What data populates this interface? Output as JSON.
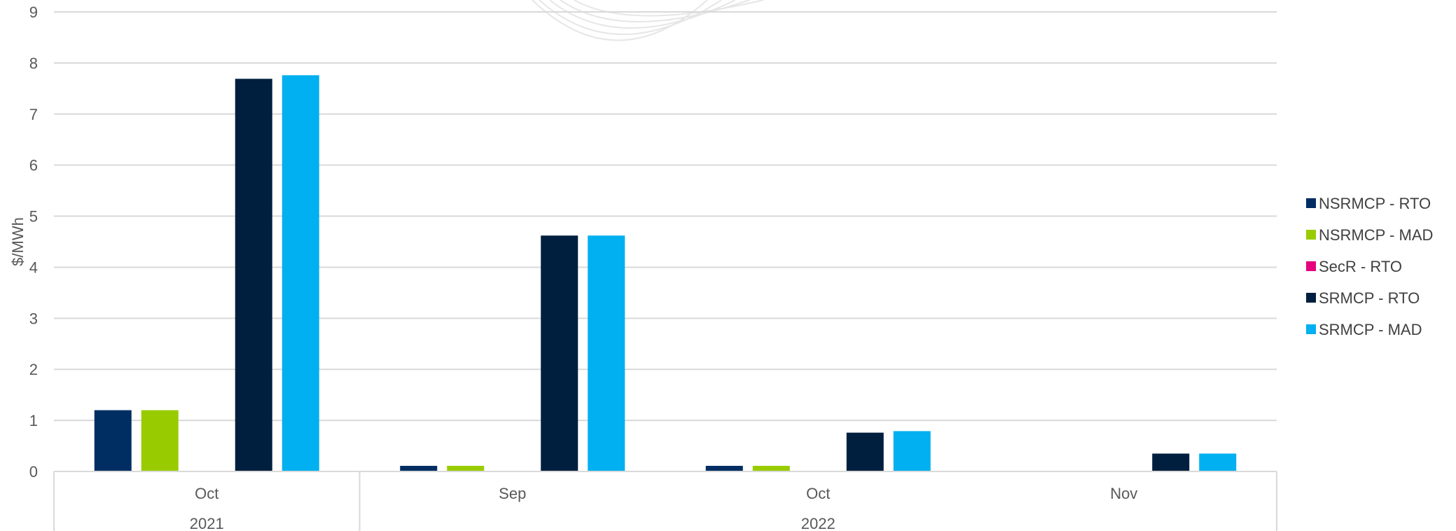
{
  "chart_data": {
    "type": "bar",
    "title": "",
    "xlabel": "",
    "ylabel": "$/MWh",
    "ylim": [
      0,
      9
    ],
    "yticks": [
      "0",
      "1",
      "2",
      "3",
      "4",
      "5",
      "6",
      "7",
      "8",
      "9"
    ],
    "grid": true,
    "legend_position": "right",
    "categories": [
      "Oct",
      "Sep",
      "Oct",
      "Nov"
    ],
    "category_groups": [
      {
        "label": "2021",
        "categories": [
          "Oct"
        ]
      },
      {
        "label": "2022",
        "categories": [
          "Sep",
          "Oct",
          "Nov"
        ]
      }
    ],
    "series": [
      {
        "name": "NSRMCP - RTO",
        "color": "#002E63",
        "values": [
          1.2,
          0.11,
          0.11,
          0.01
        ]
      },
      {
        "name": "NSRMCP - MAD",
        "color": "#99CC00",
        "values": [
          1.2,
          0.11,
          0.11,
          0.01
        ]
      },
      {
        "name": "SecR - RTO",
        "color": "#E5007E",
        "values": [
          0,
          0,
          0,
          0
        ]
      },
      {
        "name": "SRMCP - RTO",
        "color": "#001F3F",
        "values": [
          7.69,
          4.62,
          0.76,
          0.35
        ]
      },
      {
        "name": "SRMCP - MAD",
        "color": "#00B0F0",
        "values": [
          7.76,
          4.62,
          0.79,
          0.35
        ]
      }
    ]
  }
}
